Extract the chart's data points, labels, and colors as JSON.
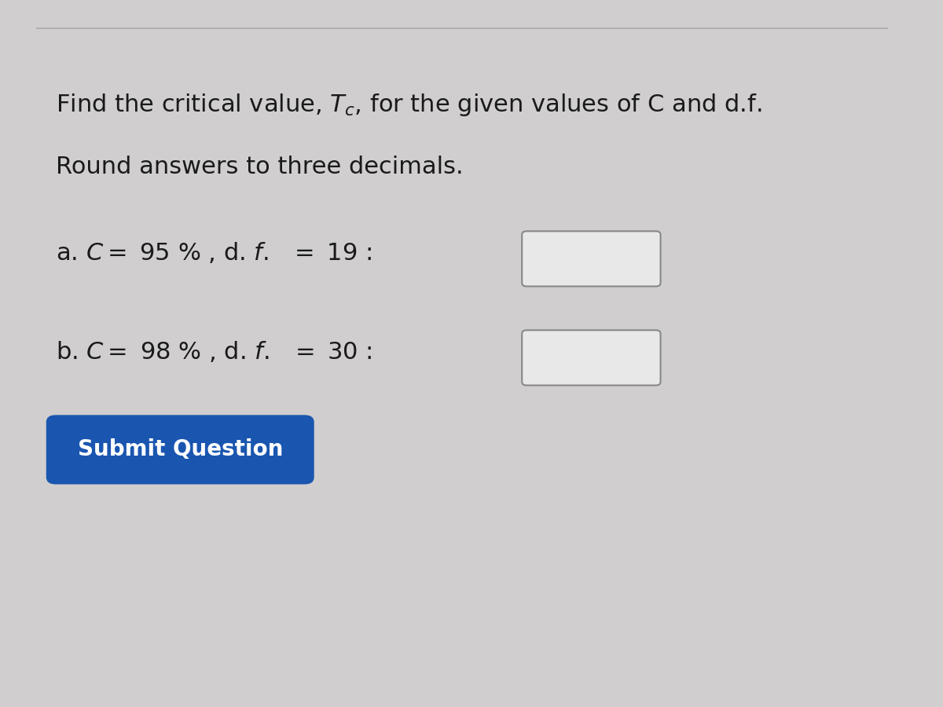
{
  "bg_color": "#d0cece",
  "title_line1": "Find the critical value, $T_c$, for the given values of C and d.f.",
  "title_line2": "Round answers to three decimals.",
  "line_a": "a. $C = $ 95 % , d. $f.$  $= $ 19 :",
  "line_b": "b. $C = $ 98 % , d. $f.$  $= $ 30 :",
  "button_text": "Submit Question",
  "button_color": "#1a56b0",
  "button_text_color": "#ffffff",
  "text_color": "#1a1a1a",
  "box_color": "#e8e8e8",
  "box_border_color": "#888888",
  "top_line_color": "#aaaaaa",
  "font_size_title": 22,
  "font_size_body": 22,
  "font_size_button": 20
}
